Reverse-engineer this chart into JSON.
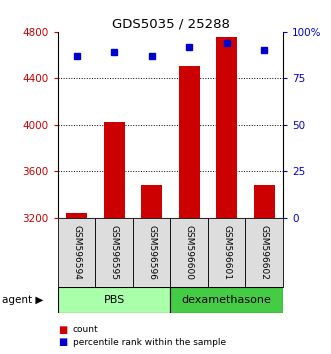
{
  "title": "GDS5035 / 25288",
  "samples": [
    "GSM596594",
    "GSM596595",
    "GSM596596",
    "GSM596600",
    "GSM596601",
    "GSM596602"
  ],
  "counts": [
    3240,
    4025,
    3480,
    4510,
    4760,
    3480
  ],
  "percentiles": [
    87,
    89,
    87,
    92,
    94,
    90
  ],
  "bar_color": "#cc0000",
  "dot_color": "#0000cc",
  "ymin": 3200,
  "ymax": 4800,
  "yticks": [
    3200,
    3600,
    4000,
    4400,
    4800
  ],
  "y2ticks": [
    0,
    25,
    50,
    75,
    100
  ],
  "y2labels": [
    "0",
    "25",
    "50",
    "75",
    "100%"
  ],
  "ylabel_color": "#cc0000",
  "y2label_color": "#0000cc",
  "group_pbs_color": "#aaffaa",
  "group_dex_color": "#44cc44",
  "sample_box_color": "#dddddd",
  "bar_width": 0.55
}
